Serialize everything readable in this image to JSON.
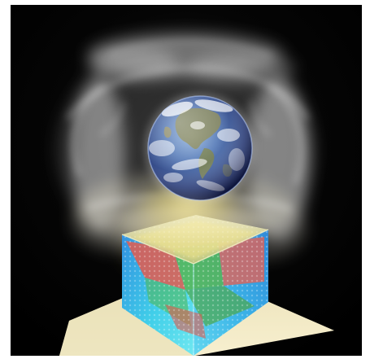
{
  "image": {
    "subject": "earth-above-glowing-cube",
    "colors": {
      "background": "#000000",
      "glow": "#f4f1de",
      "ocean_light": "#6f93c7",
      "ocean_dark": "#1b2a5d",
      "cube_top": "#d6d79a",
      "cube_left": "#3cc8e8",
      "cube_right": "#36aee6",
      "accent_red": "#e55a4b",
      "accent_green": "#59b54a",
      "floor": "#f2e9c3"
    }
  }
}
